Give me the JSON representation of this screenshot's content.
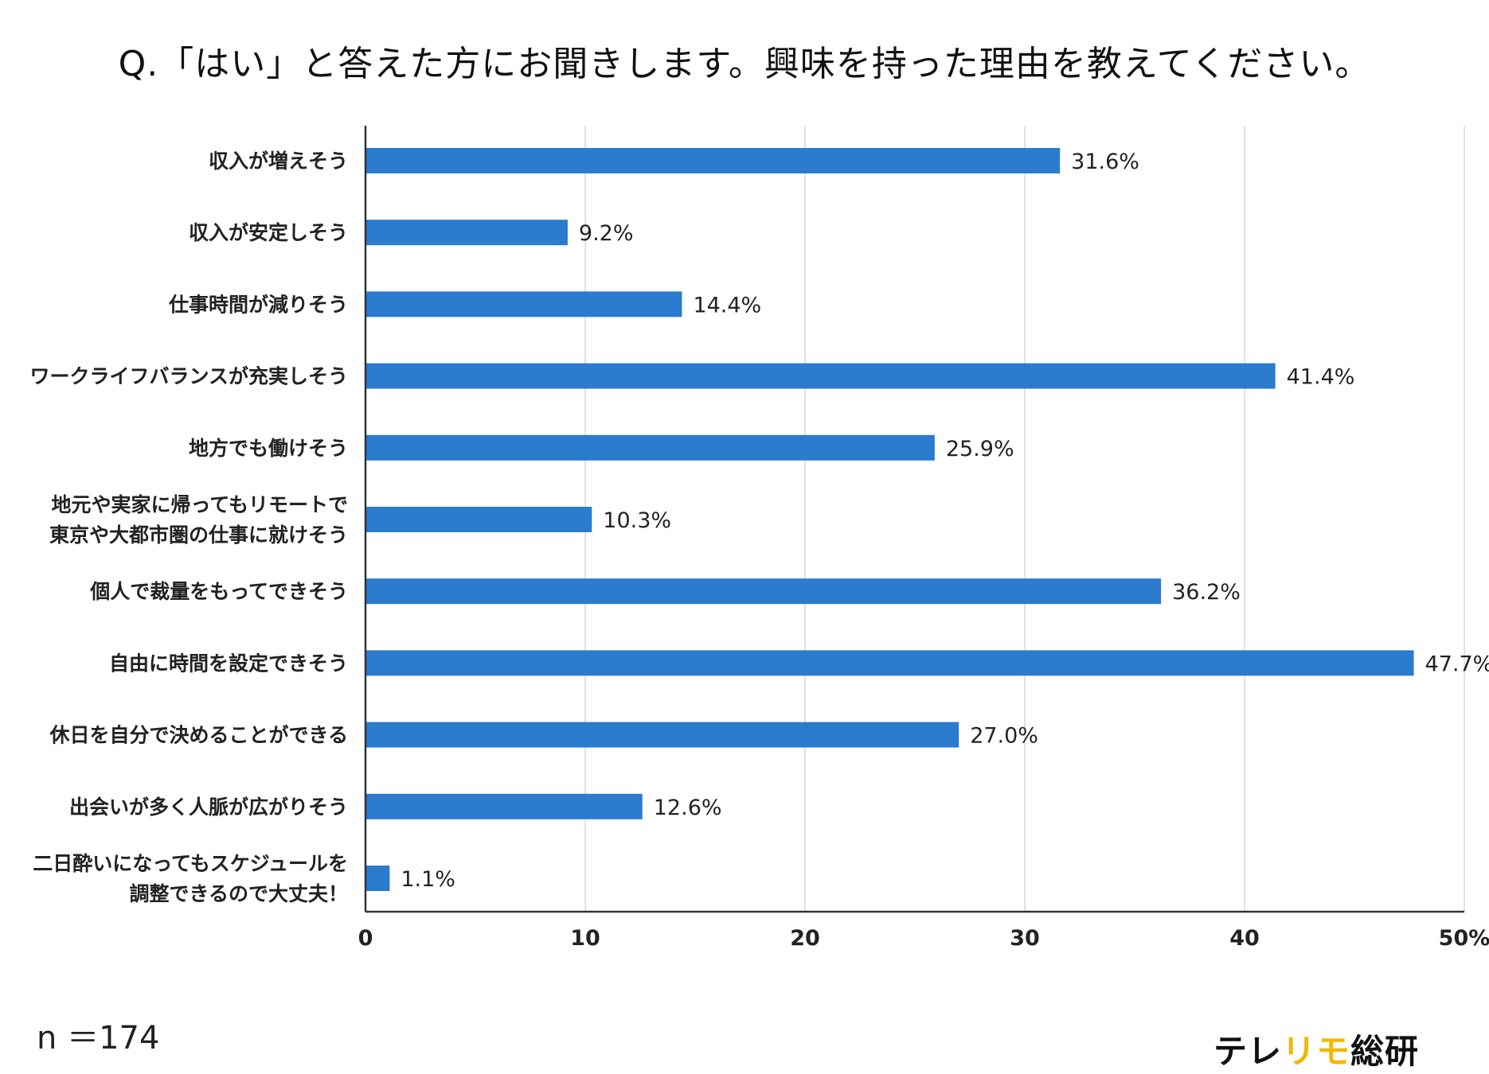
{
  "title": "Q.「はい」と答えた方にお聞きします。興味を持った理由を教えてください。",
  "sample_size": "n ＝174",
  "brand": {
    "prefix": "テレ",
    "accent": "リモ",
    "suffix": "総研"
  },
  "colors": {
    "bar": "#2b7bcf",
    "grid": "#d9d9d9",
    "axis": "#333333",
    "brand_accent": "#f2b705"
  },
  "chart_data": {
    "type": "bar",
    "orientation": "horizontal",
    "title": "Q.「はい」と答えた方にお聞きします。興味を持った理由を教えてください。",
    "xlabel": "",
    "ylabel": "",
    "xlim": [
      0,
      50
    ],
    "ticks": [
      "0",
      "10",
      "20",
      "30",
      "40",
      "50%"
    ],
    "grid": true,
    "categories": [
      [
        "収入が増えそう"
      ],
      [
        "収入が安定しそう"
      ],
      [
        "仕事時間が減りそう"
      ],
      [
        "ワークライフバランスが充実しそう"
      ],
      [
        "地方でも働けそう"
      ],
      [
        "地元や実家に帰ってもリモートで",
        "東京や大都市圏の仕事に就けそう"
      ],
      [
        "個人で裁量をもってできそう"
      ],
      [
        "自由に時間を設定できそう"
      ],
      [
        "休日を自分で決めることができる"
      ],
      [
        "出会いが多く人脈が広がりそう"
      ],
      [
        "二日酔いになってもスケジュールを",
        "調整できるので大丈夫！"
      ]
    ],
    "values": [
      31.6,
      9.2,
      14.4,
      41.4,
      25.9,
      10.3,
      36.2,
      47.7,
      27.0,
      12.6,
      1.1
    ],
    "value_labels": [
      "31.6%",
      "9.2%",
      "14.4%",
      "41.4%",
      "25.9%",
      "10.3%",
      "36.2%",
      "47.7%",
      "27.0%",
      "12.6%",
      "1.1%"
    ]
  }
}
